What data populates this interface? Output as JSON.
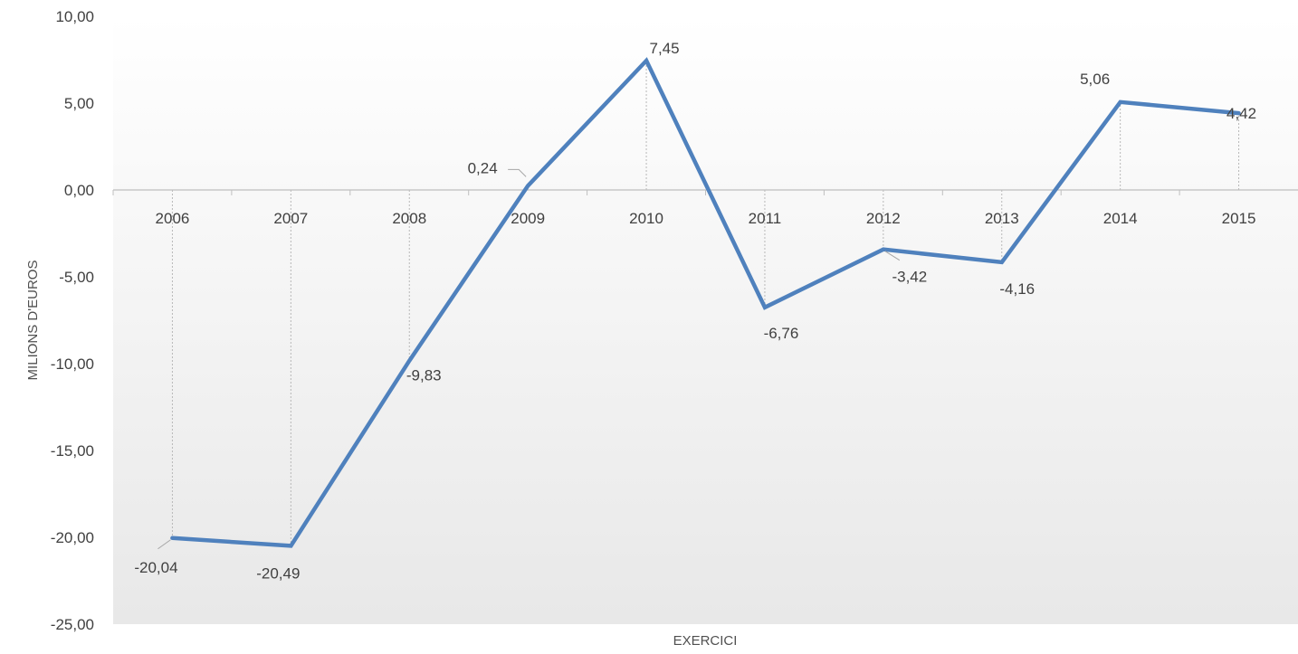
{
  "chart_data": {
    "type": "line",
    "categories": [
      "2006",
      "2007",
      "2008",
      "2009",
      "2010",
      "2011",
      "2012",
      "2013",
      "2014",
      "2015"
    ],
    "series": [
      {
        "values": [
          -20.04,
          -20.49,
          -9.83,
          0.24,
          7.45,
          -6.76,
          -3.42,
          -4.16,
          5.06,
          4.42
        ],
        "color": "#4F81BD"
      }
    ],
    "data_labels": [
      "-20,04",
      "-20,49",
      "-9,83",
      "0,24",
      "7,45",
      "-6,76",
      "-3,42",
      "-4,16",
      "5,06",
      "4,42"
    ],
    "y_ticks": [
      10,
      5,
      0,
      -5,
      -10,
      -15,
      -20,
      -25
    ],
    "y_tick_labels": [
      "10,00",
      "5,00",
      "0,00",
      "-5,00",
      "-10,00",
      "-15,00",
      "-20,00",
      "-25,00"
    ],
    "ylim": [
      -25,
      10
    ],
    "xlabel": "EXERCICI",
    "ylabel": "MILIONS D'EUROS",
    "drop_lines": true,
    "grid": false,
    "legend": "none",
    "background": "vertical gradient white to light gray"
  }
}
